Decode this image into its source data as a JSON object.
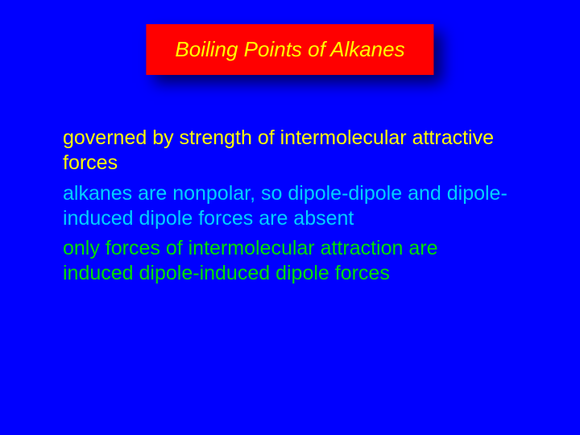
{
  "title": {
    "text": "Boiling Points of Alkanes",
    "color": "#ffff00",
    "background": "#ff0000"
  },
  "bullets": [
    {
      "text": "governed by strength of intermolecular attractive forces",
      "color": "#ffff00"
    },
    {
      "text": "alkanes are nonpolar, so dipole-dipole and dipole-induced dipole forces are absent",
      "color": "#00d0ff"
    },
    {
      "text": "only forces of intermolecular attraction are induced dipole-induced dipole forces",
      "color": "#00e000"
    }
  ],
  "background_color": "#0000ff",
  "title_fontsize": 26,
  "bullet_fontsize": 25
}
